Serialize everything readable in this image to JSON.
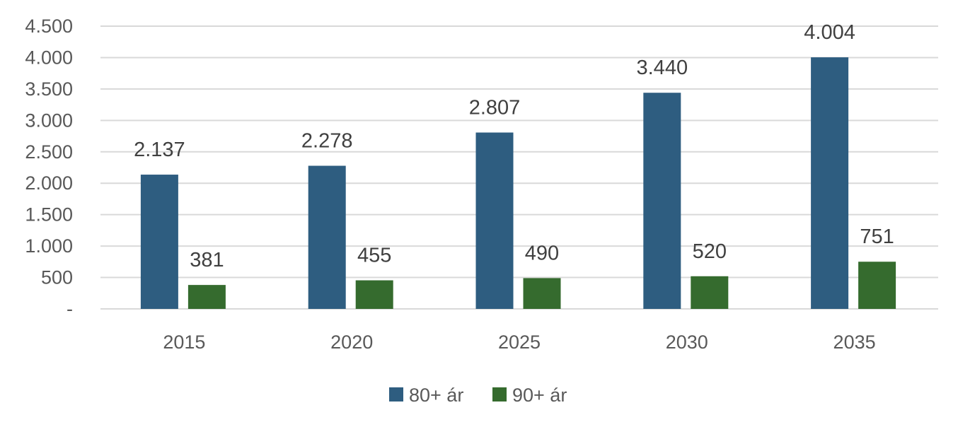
{
  "chart_data": {
    "type": "bar",
    "title": "",
    "xlabel": "",
    "ylabel": "",
    "categories": [
      "2015",
      "2020",
      "2025",
      "2030",
      "2035"
    ],
    "series": [
      {
        "name": "80+ ár",
        "values": [
          2137,
          2278,
          2807,
          3440,
          4004
        ],
        "value_labels": [
          "2.137",
          "2.278",
          "2.807",
          "3.440",
          "4.004"
        ],
        "color": "#2e5d80"
      },
      {
        "name": "90+ ár",
        "values": [
          381,
          455,
          490,
          520,
          751
        ],
        "value_labels": [
          "381",
          "455",
          "490",
          "520",
          "751"
        ],
        "color": "#356b2e"
      }
    ],
    "ylim": [
      0,
      4500
    ],
    "yticks": [
      0,
      500,
      1000,
      1500,
      2000,
      2500,
      3000,
      3500,
      4000,
      4500
    ],
    "ytick_labels": [
      "-",
      "500",
      "1.000",
      "1.500",
      "2.000",
      "2.500",
      "3.000",
      "3.500",
      "4.000",
      "4.500"
    ],
    "grid": true,
    "legend_position": "bottom"
  },
  "colors": {
    "gridline": "#d9d9d9",
    "axis_text": "#595959",
    "data_label": "#404040",
    "legend_text": "#595959"
  }
}
